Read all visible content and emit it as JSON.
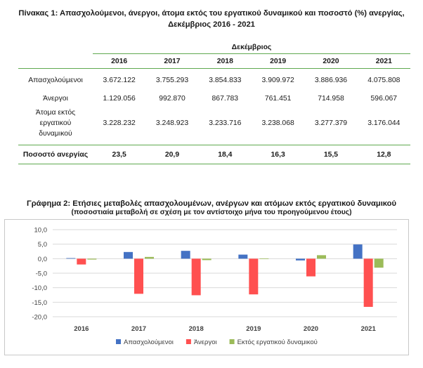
{
  "table": {
    "title_line1": "Πίνακας 1: Απασχολούμενοι, άνεργοι, άτομα εκτός του εργατικού δυναμικού και ποσοστό (%) ανεργίας,",
    "title_line2": "Δεκέμβριος 2016 - 2021",
    "group_header": "Δεκέμβριος",
    "years": [
      "2016",
      "2017",
      "2018",
      "2019",
      "2020",
      "2021"
    ],
    "rows": [
      {
        "label": "Απασχολούμενοι",
        "values": [
          "3.672.122",
          "3.755.293",
          "3.854.833",
          "3.909.972",
          "3.886.936",
          "4.075.808"
        ]
      },
      {
        "label": "Άνεργοι",
        "values": [
          "1.129.056",
          "992.870",
          "867.783",
          "761.451",
          "714.958",
          "596.067"
        ]
      },
      {
        "label_lines": [
          "Άτομα εκτός",
          "εργατικού",
          "δυναμικού"
        ],
        "values": [
          "3.228.232",
          "3.248.923",
          "3.233.716",
          "3.238.068",
          "3.277.379",
          "3.176.044"
        ]
      }
    ],
    "rate_row": {
      "label": "Ποσοστό ανεργίας",
      "values": [
        "23,5",
        "20,9",
        "18,4",
        "16,3",
        "15,5",
        "12,8"
      ]
    }
  },
  "chart_title": "Γράφημα 2: Ετήσιες μεταβολές απασχολουμένων, ανέργων και ατόμων εκτός εργατικού δυναμικού",
  "chart_subtitle": "(ποσοστιαία μεταβολή σε σχέση με τον αντίστοιχο μήνα του προηγούμενου έτους)",
  "chart_data": {
    "type": "bar",
    "categories": [
      "2016",
      "2017",
      "2018",
      "2019",
      "2020",
      "2021"
    ],
    "series": [
      {
        "name": "Απασχολούμενοι",
        "color": "#4472c4",
        "values": [
          0.2,
          2.3,
          2.7,
          1.4,
          -0.6,
          4.9
        ]
      },
      {
        "name": "Άνεργοι",
        "color": "#ff5050",
        "values": [
          -2.0,
          -12.1,
          -12.6,
          -12.3,
          -6.1,
          -16.6
        ]
      },
      {
        "name": "Εκτός εργατικού δυναμικού",
        "color": "#9bbb59",
        "values": [
          -0.3,
          0.6,
          -0.5,
          0.1,
          1.2,
          -3.1
        ]
      }
    ],
    "ylim": [
      -20,
      10
    ],
    "yticks": [
      "10,0",
      "5,0",
      "0,0",
      "-5,0",
      "-10,0",
      "-15,0",
      "-20,0"
    ],
    "ytick_values": [
      10,
      5,
      0,
      -5,
      -10,
      -15,
      -20
    ],
    "grid": true,
    "legend_position": "bottom"
  }
}
